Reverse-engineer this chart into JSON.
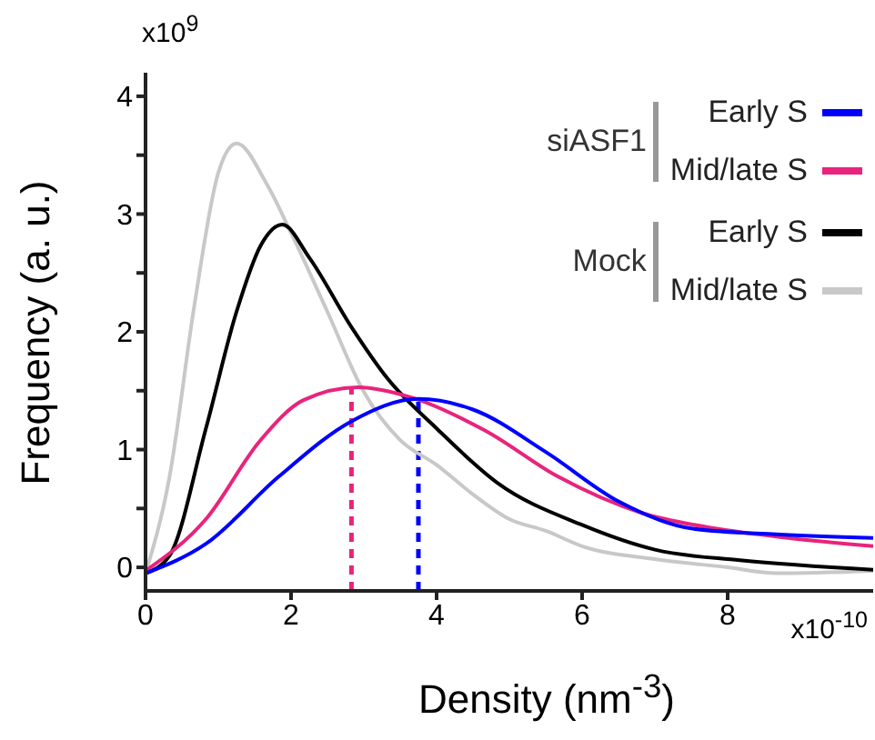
{
  "chart_data": {
    "type": "line",
    "xlabel": "Density (nm$^{-3}$)",
    "ylabel": "Frequency (a. u.)",
    "annotations": [
      "x10$^{9}$",
      "x10$^{-10}$",
      "siASF1",
      "Mock"
    ],
    "xlim": [
      0,
      10
    ],
    "xticks": [
      0,
      2,
      4,
      6,
      8
    ],
    "ylim": [
      -0.2,
      4.2
    ],
    "yticks": [
      0,
      {
        "value": 0.5,
        "label": null
      },
      1,
      {
        "value": 1.5,
        "label": null
      },
      2,
      {
        "value": 2.5,
        "label": null
      },
      3,
      {
        "value": 3.5,
        "label": null
      },
      4
    ],
    "grid": false,
    "legend": "top right",
    "marker": "none",
    "line_style": "solid",
    "series": [
      {
        "name": "Early S",
        "color": "#0000ff",
        "x": [
          0,
          0.83,
          1.83,
          2.83,
          3.75,
          4.5,
          5.5,
          6.5,
          7.5,
          8.67,
          10
        ],
        "values": [
          -0.05,
          0.2,
          0.77,
          1.24,
          1.43,
          1.34,
          0.98,
          0.56,
          0.33,
          0.28,
          0.25
        ]
      },
      {
        "name": "Mid/late S",
        "color": "#e8247c",
        "x": [
          0,
          0.83,
          1.58,
          2.17,
          2.92,
          3.67,
          4.67,
          5.67,
          6.83,
          7.83,
          8.83,
          10
        ],
        "values": [
          -0.03,
          0.41,
          1.08,
          1.42,
          1.53,
          1.44,
          1.16,
          0.77,
          0.46,
          0.33,
          0.25,
          0.18
        ]
      },
      {
        "name": "Early S",
        "color": "#000000",
        "x": [
          0,
          0.33,
          0.83,
          1.25,
          1.58,
          1.88,
          2.25,
          2.83,
          3.33,
          4,
          4.83,
          6,
          7,
          8.17,
          10
        ],
        "values": [
          -0.05,
          0.1,
          1.18,
          2.17,
          2.73,
          2.91,
          2.63,
          2.04,
          1.6,
          1.18,
          0.72,
          0.36,
          0.15,
          0.06,
          -0.02
        ]
      },
      {
        "name": "Mid/late S",
        "color": "#c8c8c8",
        "x": [
          0,
          0.33,
          0.67,
          1,
          1.25,
          1.67,
          2,
          2.5,
          3,
          3.5,
          4,
          4.5,
          5,
          5.5,
          6,
          7,
          8,
          8.67,
          10
        ],
        "values": [
          -0.05,
          0.77,
          2.22,
          3.35,
          3.6,
          3.25,
          2.84,
          2.17,
          1.49,
          1.08,
          0.87,
          0.62,
          0.41,
          0.31,
          0.18,
          0.07,
          0,
          -0.05,
          -0.03
        ]
      }
    ],
    "ref_lines": [
      {
        "axis": "x",
        "value": 2.83,
        "color": "#e8247c",
        "line_style": "dashed"
      },
      {
        "axis": "x",
        "value": 3.75,
        "color": "#0000ff",
        "line_style": "dashed"
      }
    ]
  }
}
